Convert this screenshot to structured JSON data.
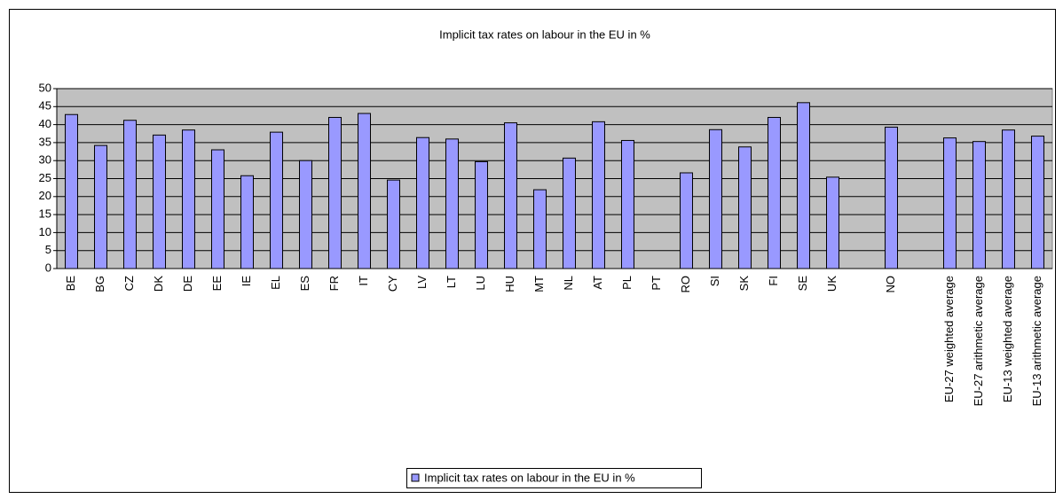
{
  "chart_data": {
    "type": "bar",
    "title": "Implicit tax rates on labour in the EU in %",
    "categories": [
      "BE",
      "BG",
      "CZ",
      "DK",
      "DE",
      "EE",
      "IE",
      "EL",
      "ES",
      "FR",
      "IT",
      "CY",
      "LV",
      "LT",
      "LU",
      "HU",
      "MT",
      "NL",
      "AT",
      "PL",
      "PT",
      "RO",
      "SI",
      "SK",
      "FI",
      "SE",
      "UK",
      null,
      "NO",
      null,
      "EU-27 weighted average",
      "EU-27 arithmetic average",
      "EU-13 weighted average",
      "EU-13 arithmetic average"
    ],
    "series": [
      {
        "name": "Implicit tax rates on labour in the EU in %",
        "color": "#9999ff",
        "values": [
          42.8,
          34.2,
          41.2,
          37.1,
          38.5,
          33.0,
          25.8,
          37.9,
          30.0,
          42.0,
          43.1,
          24.6,
          36.4,
          36.0,
          29.7,
          40.5,
          21.9,
          30.7,
          40.8,
          35.6,
          null,
          26.6,
          38.6,
          33.8,
          42.0,
          46.1,
          25.4,
          null,
          39.3,
          null,
          36.3,
          35.3,
          38.5,
          36.8
        ]
      }
    ],
    "ylim": [
      0,
      50
    ],
    "yticks": [
      0,
      5,
      10,
      15,
      20,
      25,
      30,
      35,
      40,
      45,
      50
    ],
    "grid": true,
    "legend": "bottom"
  }
}
